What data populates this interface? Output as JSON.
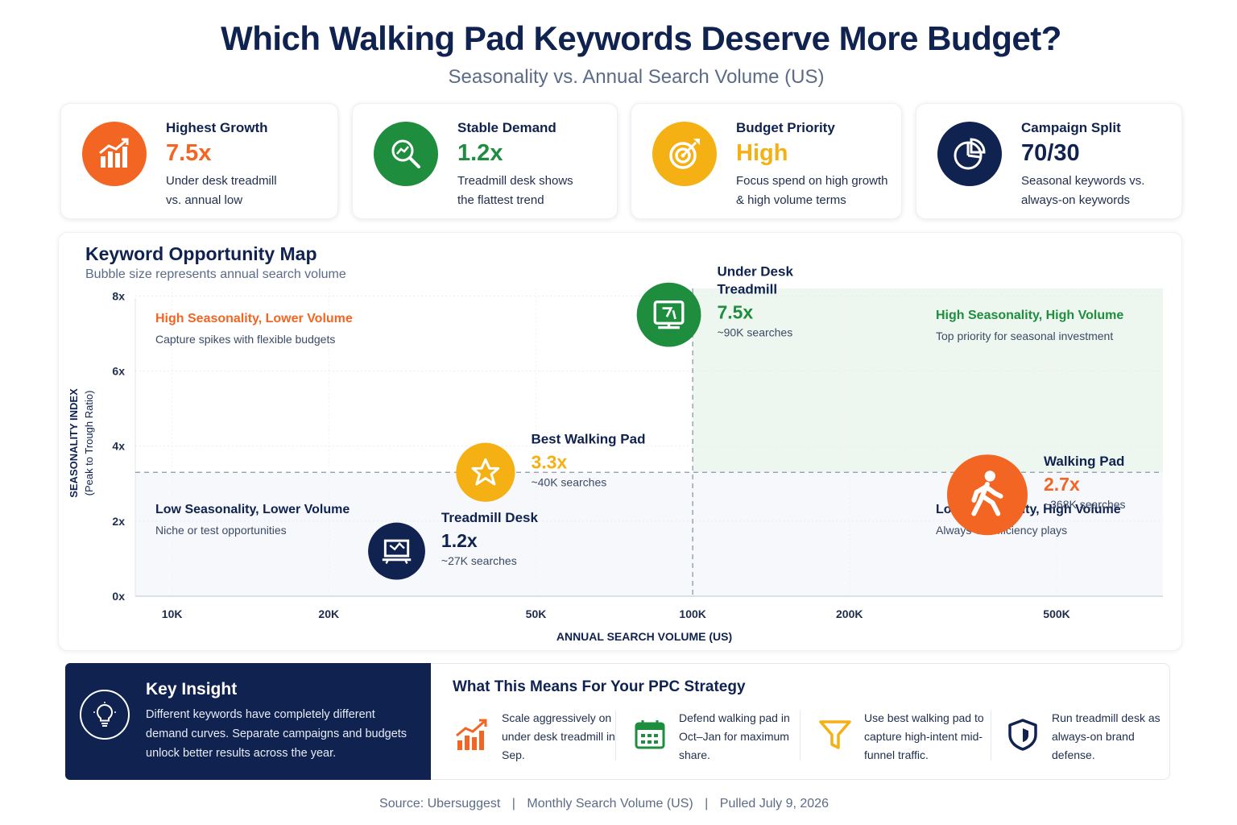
{
  "header": {
    "title": "Which Walking Pad Keywords Deserve More Budget?",
    "subtitle": "Seasonality vs. Annual Search Volume (US)"
  },
  "kpis": [
    {
      "label": "Highest Growth",
      "value": "7.5x",
      "desc1": "Under desk treadmill",
      "desc2": "vs. annual low",
      "color": "#f26522",
      "icon": "bar-chart-growth-icon"
    },
    {
      "label": "Stable Demand",
      "value": "1.2x",
      "desc1": "Treadmill desk shows",
      "desc2": "the flattest trend",
      "color": "#1e8e3e",
      "icon": "magnifier-trend-icon"
    },
    {
      "label": "Budget Priority",
      "value": "High",
      "desc1": "Focus spend on high growth",
      "desc2": "& high volume terms",
      "color": "#f5b014",
      "icon": "target-icon"
    },
    {
      "label": "Campaign Split",
      "value": "70/30",
      "desc1": "Seasonal keywords vs.",
      "desc2": "always-on keywords",
      "color": "#0f2250",
      "icon": "pie-chart-icon"
    }
  ],
  "map": {
    "title": "Keyword Opportunity Map",
    "subtitle": "Bubble size represents annual search volume"
  },
  "chart_data": {
    "type": "scatter",
    "xlabel": "ANNUAL SEARCH VOLUME (US)",
    "ylabel": "SEASONALITY INDEX",
    "ylabel_sub": "(Peak to Trough Ratio)",
    "x_scale": "log",
    "x_ticks": [
      {
        "value": 10000,
        "label": "10K"
      },
      {
        "value": 20000,
        "label": "20K"
      },
      {
        "value": 50000,
        "label": "50K"
      },
      {
        "value": 100000,
        "label": "100K"
      },
      {
        "value": 200000,
        "label": "200K"
      },
      {
        "value": 500000,
        "label": "500K"
      }
    ],
    "y_ticks": [
      {
        "value": 0,
        "label": "0x"
      },
      {
        "value": 2,
        "label": "2x"
      },
      {
        "value": 4,
        "label": "4x"
      },
      {
        "value": 6,
        "label": "6x"
      },
      {
        "value": 8,
        "label": "8x"
      }
    ],
    "xlim": [
      8500,
      800000
    ],
    "ylim": [
      0,
      8.2
    ],
    "divider_x": 100000,
    "divider_y": 3.3,
    "quadrants": [
      {
        "title": "High Seasonality, Lower Volume",
        "desc": "Capture spikes with flexible budgets",
        "color": "#f26522"
      },
      {
        "title": "High Seasonality, High Volume",
        "desc": "Top priority for seasonal investment",
        "color": "#1e8e3e"
      },
      {
        "title": "Low Seasonality, Lower Volume",
        "desc": "Niche or test opportunities",
        "color": "#0f2250"
      },
      {
        "title": "Low Seasonality, High Volume",
        "desc": "Always-on efficiency plays",
        "color": "#0f2250"
      }
    ],
    "points": [
      {
        "name": "Under Desk Treadmill",
        "x": 90000,
        "y": 7.5,
        "value_label": "7.5x",
        "volume_label": "~90K searches",
        "color": "#1e8e3e",
        "icon": "treadmill-icon"
      },
      {
        "name": "Walking Pad",
        "x": 368000,
        "y": 2.7,
        "value_label": "2.7x",
        "volume_label": "~368K searches",
        "color": "#f26522",
        "icon": "walking-person-icon"
      },
      {
        "name": "Best Walking Pad",
        "x": 40000,
        "y": 3.3,
        "value_label": "3.3x",
        "volume_label": "~40K searches",
        "color": "#f5b014",
        "icon": "star-icon"
      },
      {
        "name": "Treadmill Desk",
        "x": 27000,
        "y": 1.2,
        "value_label": "1.2x",
        "volume_label": "~27K searches",
        "color": "#0f2250",
        "icon": "desk-icon"
      }
    ]
  },
  "insight": {
    "title": "Key Insight",
    "text": "Different keywords have completely different demand curves. Separate campaigns and budgets unlock better results across the year."
  },
  "ppc": {
    "title": "What This Means For Your PPC Strategy",
    "items": [
      {
        "text": "Scale aggressively on under desk treadmill in Sep.",
        "icon": "growth-bars-icon",
        "color": "#f26522"
      },
      {
        "text": "Defend walking pad in Oct–Jan for maximum share.",
        "icon": "calendar-icon",
        "color": "#1e8e3e"
      },
      {
        "text": "Use best walking pad to capture high-intent mid-funnel traffic.",
        "icon": "funnel-icon",
        "color": "#f5b014"
      },
      {
        "text": "Run treadmill desk as always-on brand defense.",
        "icon": "shield-icon",
        "color": "#0f2250"
      }
    ]
  },
  "footer": {
    "source": "Source: Ubersuggest",
    "metric": "Monthly Search Volume (US)",
    "pulled": "Pulled July 9, 2026"
  }
}
